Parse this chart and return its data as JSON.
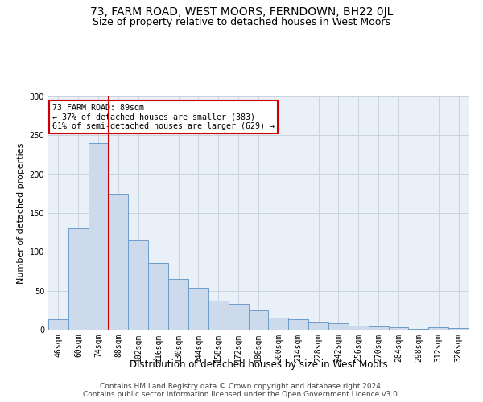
{
  "title": "73, FARM ROAD, WEST MOORS, FERNDOWN, BH22 0JL",
  "subtitle": "Size of property relative to detached houses in West Moors",
  "xlabel": "Distribution of detached houses by size in West Moors",
  "ylabel": "Number of detached properties",
  "footer_line1": "Contains HM Land Registry data © Crown copyright and database right 2024.",
  "footer_line2": "Contains public sector information licensed under the Open Government Licence v3.0.",
  "categories": [
    "46sqm",
    "60sqm",
    "74sqm",
    "88sqm",
    "102sqm",
    "116sqm",
    "130sqm",
    "144sqm",
    "158sqm",
    "172sqm",
    "186sqm",
    "200sqm",
    "214sqm",
    "228sqm",
    "242sqm",
    "256sqm",
    "270sqm",
    "284sqm",
    "298sqm",
    "312sqm",
    "326sqm"
  ],
  "bar_values": [
    13,
    130,
    240,
    175,
    115,
    86,
    65,
    54,
    37,
    33,
    25,
    16,
    13,
    9,
    8,
    5,
    4,
    3,
    1,
    3,
    2
  ],
  "bar_color": "#ccdaec",
  "bar_edge_color": "#6b9cc8",
  "red_line_index": 3,
  "annotation_text": "73 FARM ROAD: 89sqm\n← 37% of detached houses are smaller (383)\n61% of semi-detached houses are larger (629) →",
  "annotation_box_color": "#ffffff",
  "annotation_box_edge": "#cc0000",
  "red_line_color": "#cc0000",
  "background_color": "#eaf0f8",
  "ylim": [
    0,
    300
  ],
  "yticks": [
    0,
    50,
    100,
    150,
    200,
    250,
    300
  ],
  "title_fontsize": 10,
  "subtitle_fontsize": 9,
  "tick_fontsize": 7,
  "ylabel_fontsize": 8,
  "xlabel_fontsize": 8.5,
  "footer_fontsize": 6.5
}
